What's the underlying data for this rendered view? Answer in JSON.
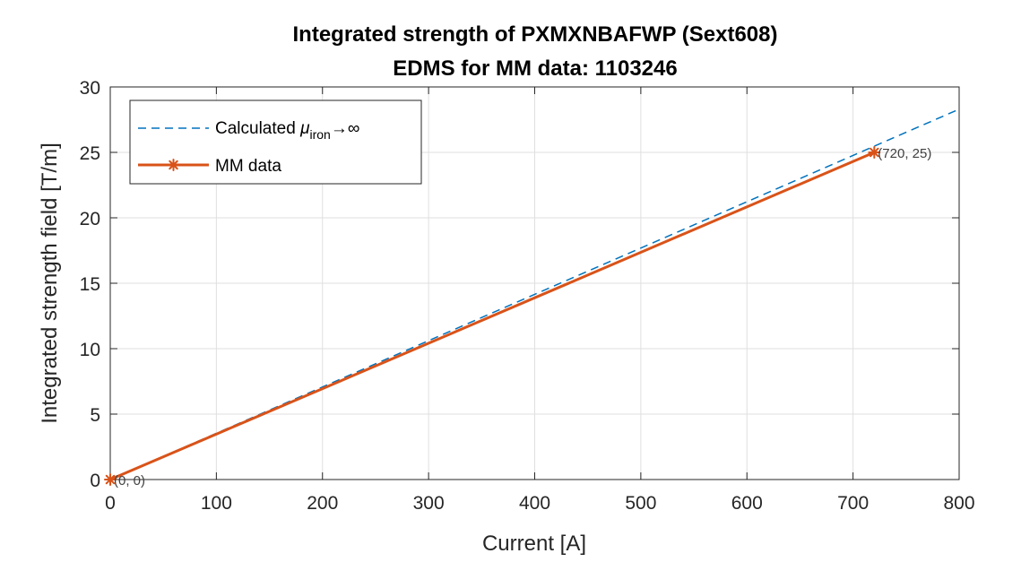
{
  "chart_data": {
    "type": "line",
    "title": "Integrated strength of PXMXNBAFWP (Sext608)",
    "subtitle": "EDMS for MM data: 1103246",
    "xlabel": "Current [A]",
    "ylabel": "Integrated strength field [T/m]",
    "xlim": [
      0,
      800
    ],
    "ylim": [
      0,
      30
    ],
    "xticks": [
      0,
      100,
      200,
      300,
      400,
      500,
      600,
      700,
      800
    ],
    "yticks": [
      0,
      5,
      10,
      15,
      20,
      25,
      30
    ],
    "grid": true,
    "legend_position": "top-left",
    "series": [
      {
        "name": "Calculated μ_iron→∞",
        "legend_text": "Calculated ",
        "legend_symbol": "μ",
        "legend_subscript": "iron",
        "legend_suffix": "→∞",
        "style": "dashed",
        "color": "#0072BD",
        "x": [
          0,
          800
        ],
        "y": [
          0,
          28.3
        ]
      },
      {
        "name": "MM data",
        "style": "solid",
        "marker": "asterisk",
        "color": "#D95319",
        "x": [
          0,
          720
        ],
        "y": [
          0,
          25
        ]
      }
    ],
    "annotations": [
      {
        "text": "(0, 0)",
        "x": 0,
        "y": 0
      },
      {
        "text": "(720, 25)",
        "x": 720,
        "y": 25
      }
    ]
  }
}
